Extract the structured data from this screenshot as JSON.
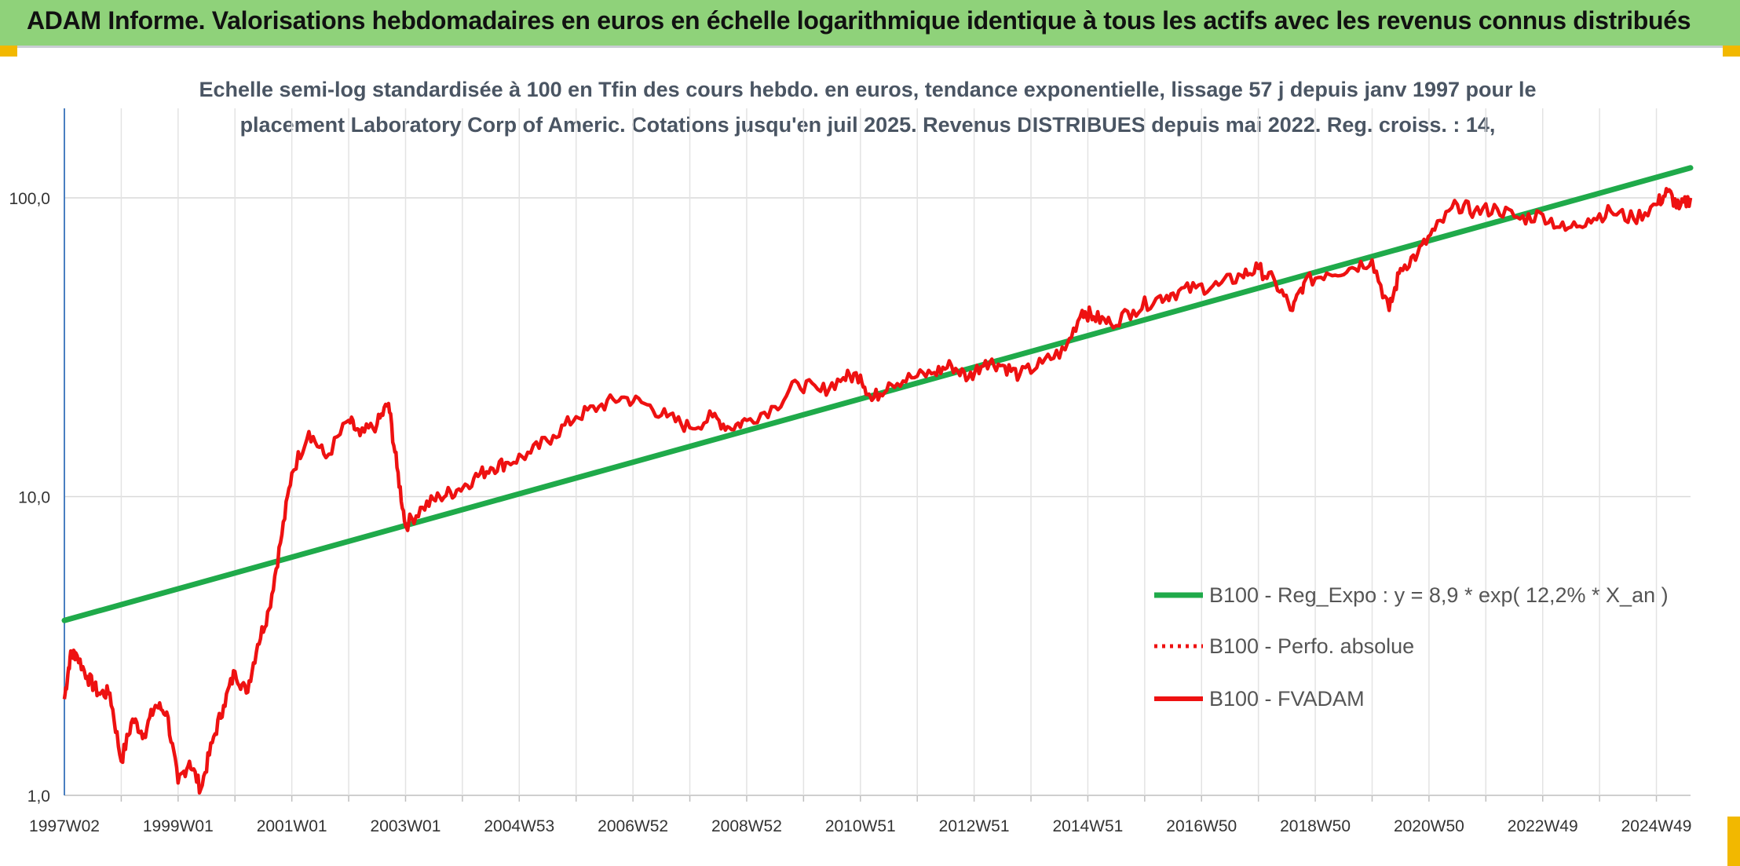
{
  "header": {
    "title": "ADAM Informe. Valorisations hebdomadaires en euros en échelle logarithmique identique à tous les actifs avec les revenus connus distribués"
  },
  "colors": {
    "banner": "#8fd27a",
    "accent": "#f2b800",
    "trend": "#1faa4a",
    "fvadam": "#ee1111",
    "perfo": "#ee1111"
  },
  "chart_data": {
    "type": "line",
    "subtitle_line1": "Echelle semi-log standardisée à 100 en Tfin des cours hebdo. en euros, tendance exponentielle, lissage 57 j depuis janv 1997 pour le",
    "subtitle_line2": "placement Laboratory Corp of Americ. Cotations jusqu'en juil 2025. Revenus DISTRIBUES depuis mai 2022. Reg. croiss. : 14,",
    "y_scale": "log",
    "ylim": [
      1,
      200
    ],
    "xlim": [
      1997.0,
      2025.6
    ],
    "grid": true,
    "legend_position": "bottom-right",
    "x_tick_labels": [
      "1997W02",
      "1999W01",
      "2001W01",
      "2003W01",
      "2004W53",
      "2006W52",
      "2008W52",
      "2010W51",
      "2012W51",
      "2014W51",
      "2016W50",
      "2018W50",
      "2020W50",
      "2022W49",
      "2024W49"
    ],
    "x_tick_values": [
      1997.0,
      1999.0,
      2001.0,
      2003.0,
      2005.0,
      2007.0,
      2009.0,
      2011.0,
      2013.0,
      2015.0,
      2017.0,
      2019.0,
      2021.0,
      2023.0,
      2025.0
    ],
    "y_tick_labels": [
      "1,0",
      "10,0",
      "100,0"
    ],
    "y_tick_values": [
      1,
      10,
      100
    ],
    "series": [
      {
        "name": "B100 - Reg_Expo : y = 8,9 * exp( 12,2% *  X_an )",
        "x": [
          1997.0,
          2025.6
        ],
        "y": [
          3.85,
          126
        ]
      },
      {
        "name": "B100 - Perfo. absolue",
        "x": [],
        "y": []
      },
      {
        "name": "B100 - FVADAM",
        "x": [
          1997.0,
          1997.1,
          1997.2,
          1997.4,
          1997.6,
          1997.8,
          1998.0,
          1998.2,
          1998.4,
          1998.6,
          1998.8,
          1999.0,
          1999.2,
          1999.4,
          1999.6,
          1999.8,
          2000.0,
          2000.2,
          2000.4,
          2000.6,
          2000.8,
          2001.0,
          2001.3,
          2001.6,
          2002.0,
          2002.2,
          2002.5,
          2002.7,
          2002.85,
          2003.0,
          2003.3,
          2003.6,
          2003.9,
          2004.2,
          2004.5,
          2004.8,
          2005.2,
          2005.6,
          2006.0,
          2006.4,
          2006.8,
          2007.2,
          2007.6,
          2008.0,
          2008.4,
          2008.7,
          2009.0,
          2009.5,
          2009.9,
          2010.3,
          2010.7,
          2011.0,
          2011.2,
          2011.5,
          2011.9,
          2012.3,
          2012.6,
          2012.9,
          2013.2,
          2013.5,
          2013.8,
          2014.2,
          2014.6,
          2014.9,
          2015.1,
          2015.4,
          2015.8,
          2016.2,
          2016.5,
          2016.9,
          2017.3,
          2017.7,
          2018.0,
          2018.3,
          2018.6,
          2018.8,
          2019.2,
          2019.6,
          2020.0,
          2020.3,
          2020.5,
          2020.8,
          2021.1,
          2021.5,
          2021.8,
          2022.2,
          2022.6,
          2023.0,
          2023.4,
          2023.8,
          2024.2,
          2024.6,
          2025.0,
          2025.2,
          2025.4,
          2025.6
        ],
        "y": [
          2.1,
          2.9,
          3.0,
          2.5,
          2.2,
          2.2,
          1.3,
          1.8,
          1.6,
          2.0,
          1.9,
          1.1,
          1.3,
          1.05,
          1.5,
          2.0,
          2.6,
          2.2,
          3.2,
          4.2,
          7.0,
          12.0,
          16.5,
          13.5,
          18.0,
          16.0,
          17.5,
          20.5,
          12.5,
          8.0,
          9.2,
          10.0,
          10.5,
          11.5,
          12.5,
          13.0,
          14.0,
          16.0,
          18.5,
          20.0,
          21.5,
          20.5,
          18.5,
          17.0,
          18.5,
          17.0,
          18.0,
          20.0,
          24.0,
          22.5,
          25.0,
          25.5,
          21.0,
          24.0,
          25.0,
          26.0,
          27.5,
          25.0,
          28.5,
          27.5,
          25.5,
          28.0,
          31.0,
          42.0,
          40.0,
          38.0,
          42.0,
          46.0,
          48.0,
          50.0,
          51.0,
          55.0,
          58.0,
          52.0,
          42.0,
          52.0,
          56.0,
          58.0,
          62.0,
          42.0,
          58.0,
          65.0,
          78.0,
          95.0,
          90.0,
          92.0,
          85.0,
          88.0,
          78.0,
          85.0,
          90.0,
          85.0,
          95.0,
          105.0,
          92.0,
          100.0
        ]
      }
    ]
  }
}
